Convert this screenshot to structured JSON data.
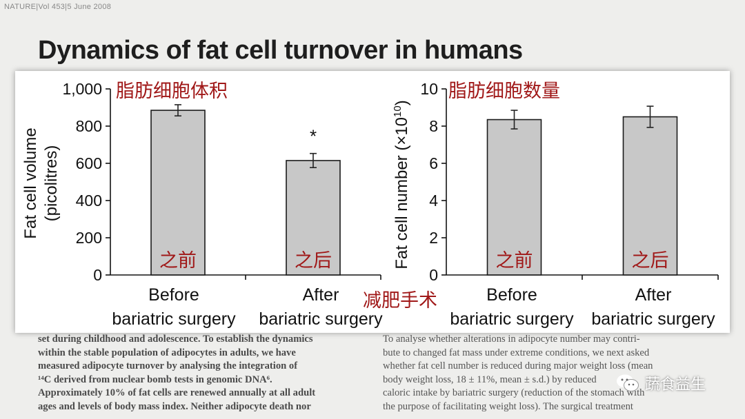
{
  "header": {
    "journal": "NATURE|Vol 453|5 June 2008"
  },
  "title": "Dynamics of fat cell turnover in humans",
  "body_left": [
    "set during childhood and adolescence. To establish the dynamics",
    "within the stable population of adipocytes in adults, we have",
    "measured adipocyte turnover by analysing the integration of",
    "¹⁴C derived from nuclear bomb tests in genomic DNA⁶.",
    "Approximately 10% of fat cells are renewed annually at all adult",
    "ages and levels of body mass index. Neither adipocyte death nor"
  ],
  "body_right": [
    "To analyse whether alterations in adipocyte number may contri-",
    "bute to changed fat mass under extreme conditions, we next asked",
    "whether fat cell number is reduced during major weight loss (mean",
    "body weight loss, 18 ± 11%, mean ± s.d.) by reduced",
    "caloric intake by bariatric surgery (reduction of the stomach with",
    "the purpose of facilitating weight loss). The surgical treatment"
  ],
  "watermark": {
    "text": "蔬食益生",
    "icon": "wechat-icon"
  },
  "surgery_annotation": "减肥手术",
  "colors": {
    "bar_fill": "#c8c8c8",
    "bar_stroke": "#1a1a1a",
    "annotation": "#a01818"
  },
  "chart_data": [
    {
      "type": "bar",
      "title": "",
      "annotation_title": "脂肪细胞体积",
      "categories": [
        [
          "Before",
          "bariatric surgery"
        ],
        [
          "After",
          "bariatric surgery"
        ]
      ],
      "values": [
        885,
        615
      ],
      "errors": [
        30,
        38
      ],
      "bar_labels": [
        "之前",
        "之后"
      ],
      "significance": [
        "",
        "*"
      ],
      "ylabel": [
        "Fat cell volume",
        "(picolitres)"
      ],
      "ylim": [
        0,
        1000
      ],
      "yticks": [
        0,
        200,
        400,
        600,
        800,
        1000
      ],
      "ytick_labels": [
        "0",
        "200",
        "400",
        "600",
        "800",
        "1,000"
      ]
    },
    {
      "type": "bar",
      "title": "",
      "annotation_title": "脂肪细胞数量",
      "categories": [
        [
          "Before",
          "bariatric surgery"
        ],
        [
          "After",
          "bariatric surgery"
        ]
      ],
      "values": [
        8.35,
        8.5
      ],
      "errors": [
        0.5,
        0.57
      ],
      "bar_labels": [
        "之前",
        "之后"
      ],
      "significance": [
        "",
        ""
      ],
      "ylabel": [
        "Fat cell number (×10",
        "10",
        ")"
      ],
      "ylim": [
        0,
        10
      ],
      "yticks": [
        0,
        2,
        4,
        6,
        8,
        10
      ],
      "ytick_labels": [
        "0",
        "2",
        "4",
        "6",
        "8",
        "10"
      ]
    }
  ]
}
